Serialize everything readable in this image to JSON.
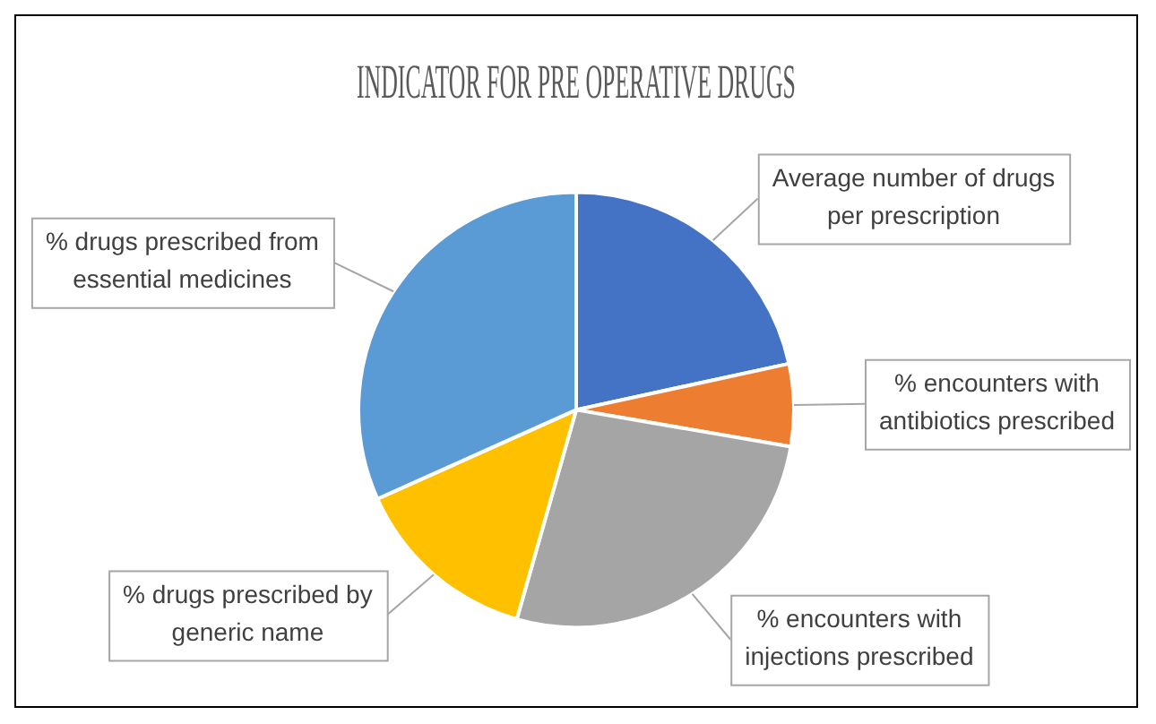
{
  "chart_data": {
    "type": "pie",
    "title": "INDICATOR FOR PRE OPERATIVE DRUGS",
    "categories": [
      "Average number of drugs per prescription",
      "% encounters with antibiotics prescribed",
      "% encounters with injections prescribed",
      "% drugs prescribed by generic name",
      "% drugs prescribed from essential medicines"
    ],
    "values": [
      21.6,
      6.1,
      26.7,
      13.9,
      31.7
    ],
    "colors": [
      "#4472c4",
      "#ed7d31",
      "#a5a5a5",
      "#ffc000",
      "#5b9bd5"
    ],
    "legend": false
  }
}
